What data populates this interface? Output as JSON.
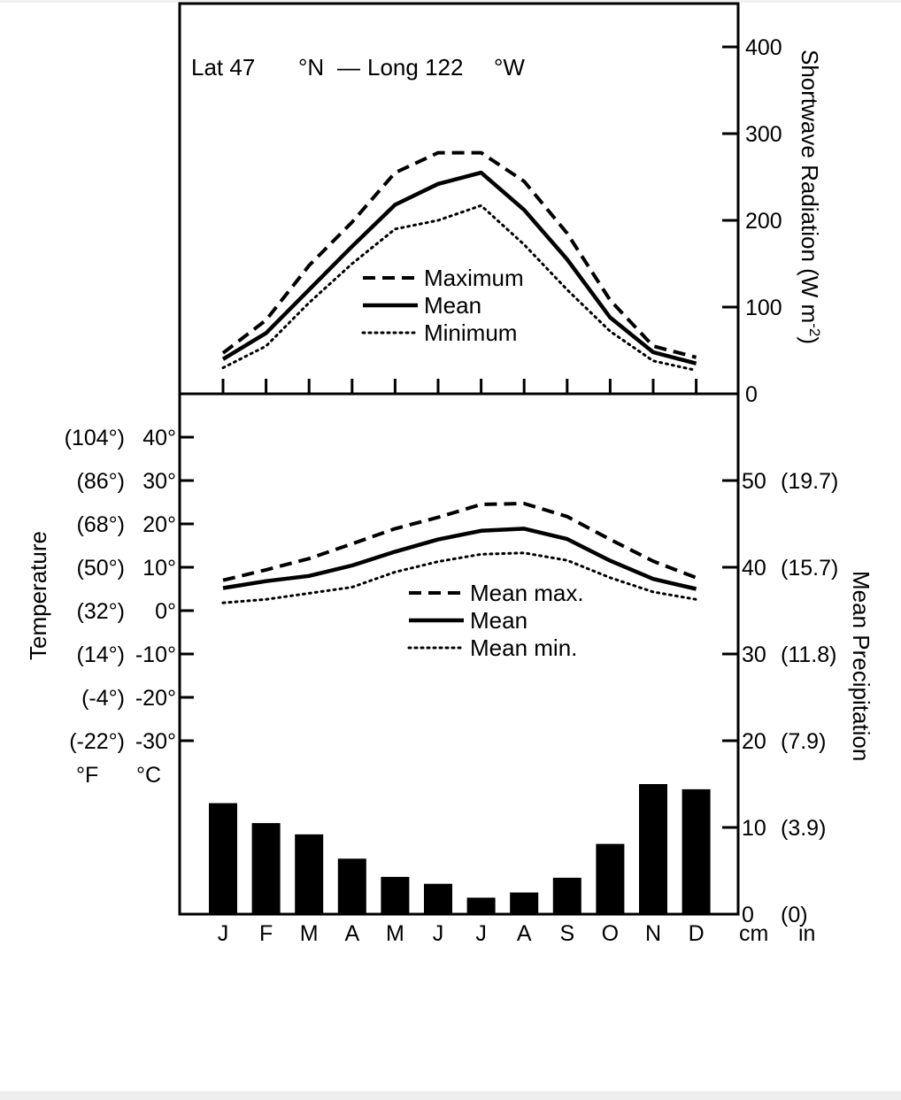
{
  "chart_data": {
    "type": "climate-diagram",
    "header": {
      "lat_prefix": "Lat 47",
      "lat_suffix": "°N",
      "dash": "—",
      "long_prefix": "Long 122",
      "long_suffix": "°W"
    },
    "months": [
      "J",
      "F",
      "M",
      "A",
      "M",
      "J",
      "J",
      "A",
      "S",
      "O",
      "N",
      "D"
    ],
    "radiation": {
      "axis_label": "Shortwave Radiation (W m",
      "axis_exp": "-2",
      "axis_close": ")",
      "ylim": [
        0,
        400
      ],
      "ticks": [
        "0",
        "100",
        "200",
        "300",
        "400"
      ],
      "series": [
        {
          "name": "Maximum",
          "style": "dashed",
          "values": [
            47,
            85,
            148,
            198,
            255,
            278,
            278,
            245,
            185,
            108,
            55,
            42
          ]
        },
        {
          "name": "Mean",
          "style": "solid",
          "values": [
            40,
            70,
            120,
            170,
            218,
            242,
            255,
            212,
            155,
            88,
            48,
            35
          ]
        },
        {
          "name": "Minimum",
          "style": "dotted",
          "values": [
            30,
            55,
            105,
            150,
            190,
            200,
            217,
            172,
            120,
            72,
            38,
            27
          ]
        }
      ]
    },
    "temperature": {
      "axis_label": "Temperature",
      "unit_f": "°F",
      "unit_c": "°C",
      "ylim_c": [
        -30,
        40
      ],
      "ticks": [
        {
          "c": 40,
          "f_label": "(104°)",
          "c_label": "40°"
        },
        {
          "c": 30,
          "f_label": "(86°)",
          "c_label": "30°"
        },
        {
          "c": 20,
          "f_label": "(68°)",
          "c_label": "20°"
        },
        {
          "c": 10,
          "f_label": "(50°)",
          "c_label": "10°"
        },
        {
          "c": 0,
          "f_label": "(32°)",
          "c_label": "0°"
        },
        {
          "c": -10,
          "f_label": "(14°)",
          "c_label": "-10°"
        },
        {
          "c": -20,
          "f_label": "(-4°)",
          "c_label": "-20°"
        },
        {
          "c": -30,
          "f_label": "(-22°)",
          "c_label": "-30°"
        }
      ],
      "series": [
        {
          "name": "Mean max.",
          "style": "dashed",
          "values": [
            7.0,
            9.4,
            12.0,
            15.4,
            18.9,
            21.5,
            24.5,
            24.7,
            21.7,
            16.4,
            11.4,
            7.6
          ]
        },
        {
          "name": "Mean",
          "style": "solid",
          "values": [
            5.2,
            6.8,
            8.0,
            10.4,
            13.6,
            16.4,
            18.4,
            18.9,
            16.5,
            11.5,
            7.3,
            5.0
          ]
        },
        {
          "name": "Mean min.",
          "style": "dotted",
          "values": [
            1.8,
            2.6,
            4.0,
            5.4,
            8.9,
            11.3,
            13.0,
            13.3,
            11.6,
            7.6,
            4.3,
            2.6
          ]
        }
      ]
    },
    "precipitation": {
      "axis_label": "Mean Precipitation",
      "unit_cm": "cm",
      "unit_in": "in",
      "ylim_cm": [
        0,
        60
      ],
      "ticks": [
        {
          "cm": 0,
          "cm_label": "0",
          "in_label": "(0)"
        },
        {
          "cm": 10,
          "cm_label": "10",
          "in_label": "(3.9)"
        },
        {
          "cm": 20,
          "cm_label": "20",
          "in_label": "(7.9)"
        },
        {
          "cm": 30,
          "cm_label": "30",
          "in_label": "(11.8)"
        },
        {
          "cm": 40,
          "cm_label": "40",
          "in_label": "(15.7)"
        },
        {
          "cm": 50,
          "cm_label": "50",
          "in_label": "(19.7)"
        }
      ],
      "values": [
        12.8,
        10.5,
        9.2,
        6.4,
        4.3,
        3.5,
        1.9,
        2.5,
        4.2,
        8.1,
        15.0,
        14.4
      ]
    }
  }
}
